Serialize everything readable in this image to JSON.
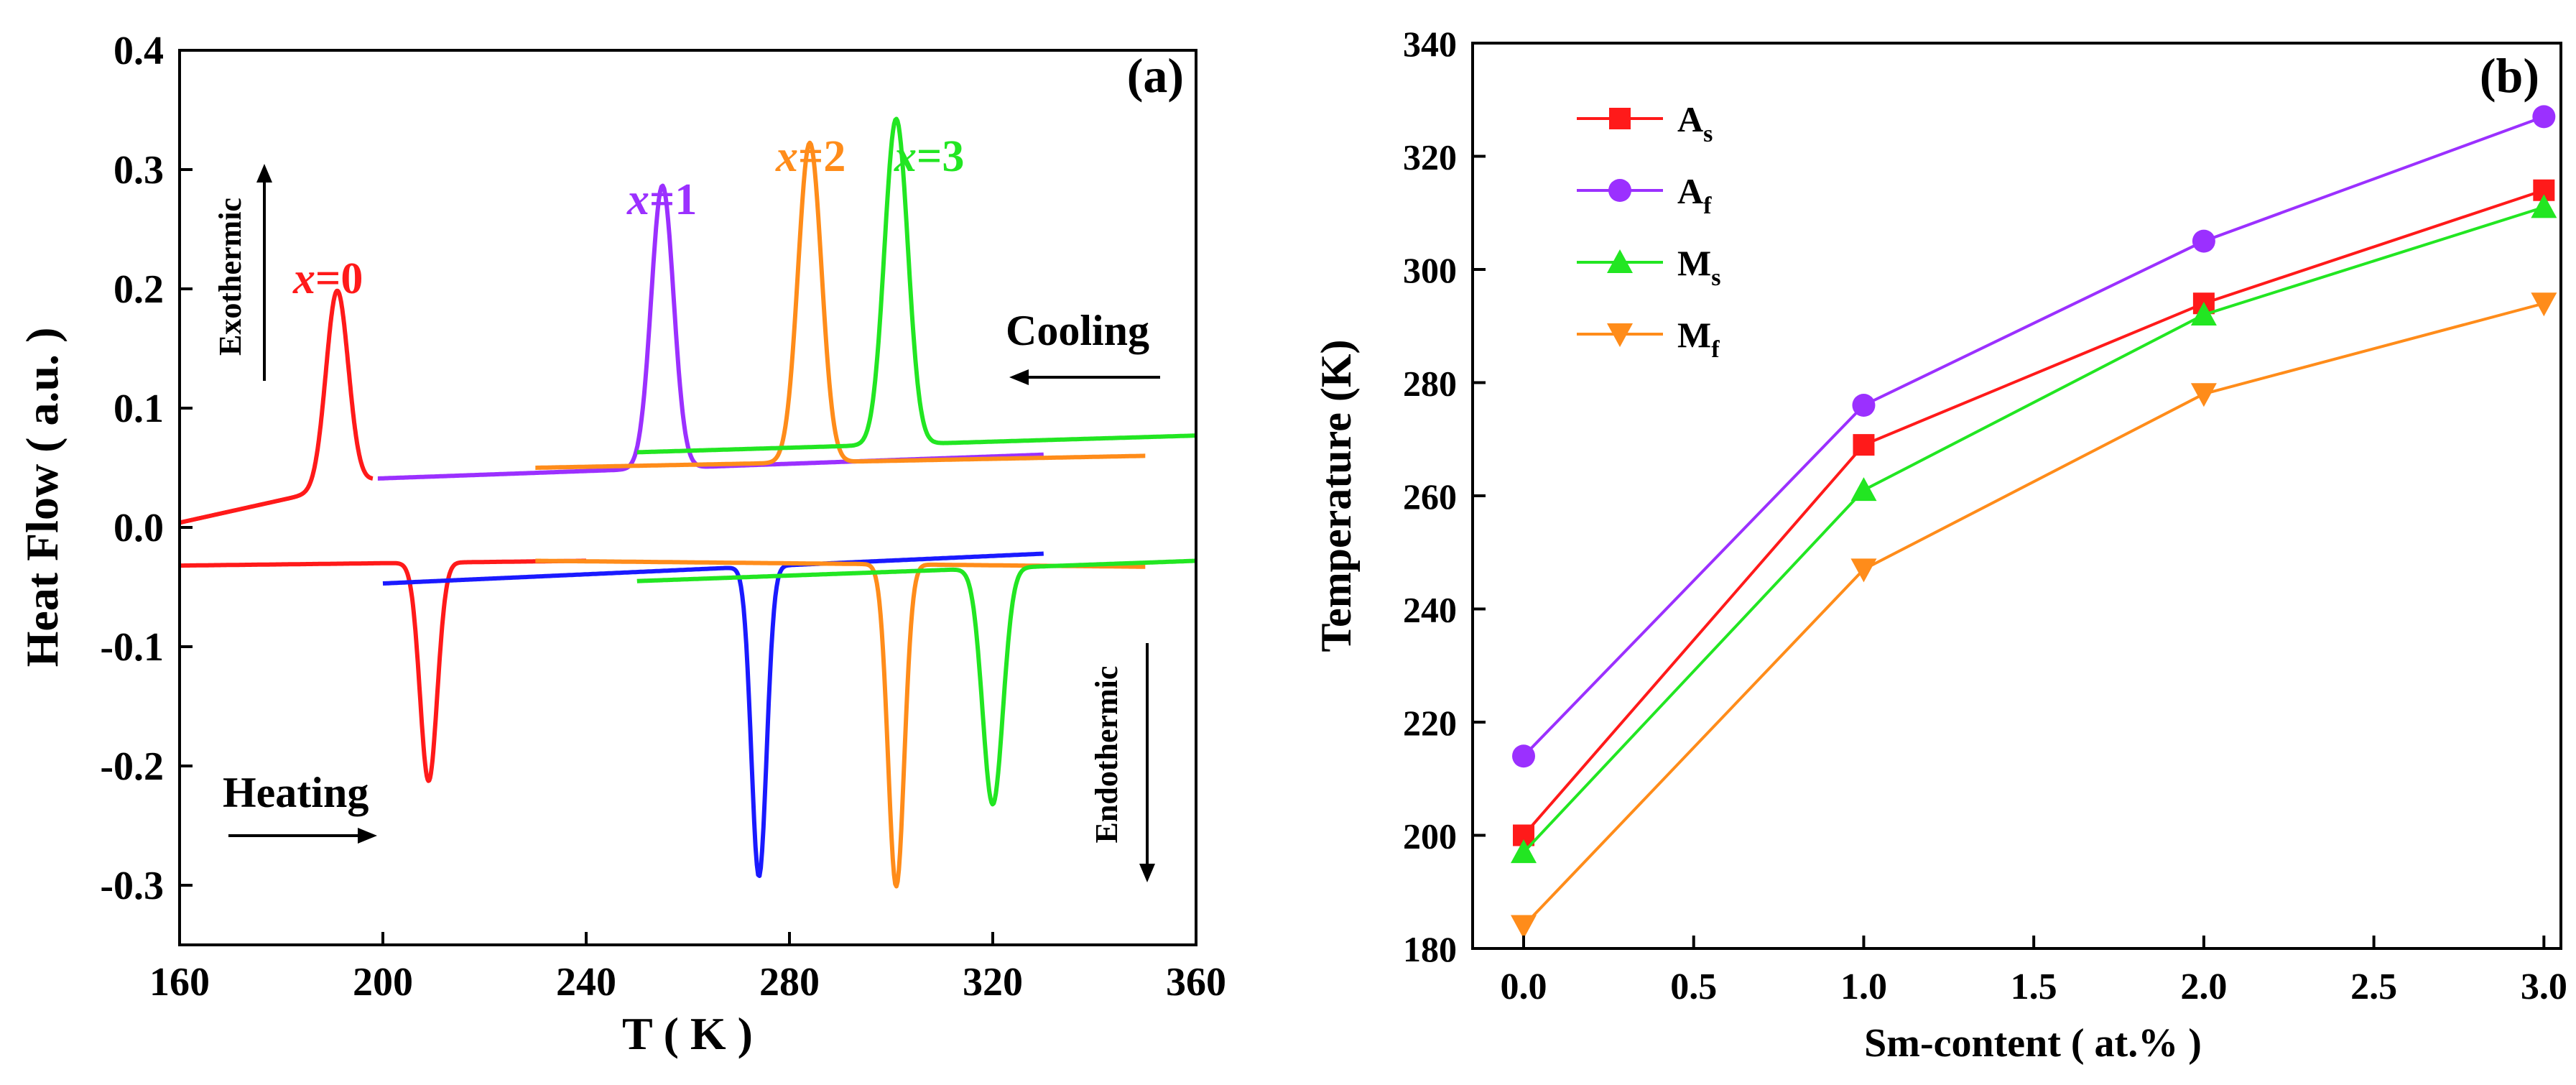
{
  "chart_data": [
    {
      "type": "line",
      "panel_label": "(a)",
      "xlabel": "T ( K )",
      "ylabel": "Heat Flow ( a.u. )",
      "xlim": [
        160,
        360
      ],
      "ylim": [
        -0.35,
        0.4
      ],
      "xticks": [
        "160",
        "200",
        "240",
        "280",
        "320",
        "360"
      ],
      "yticks": [
        "-0.3",
        "-0.2",
        "-0.1",
        "0.0",
        "0.1",
        "0.2",
        "0.3",
        "0.4"
      ],
      "annotations": {
        "exothermic": "Exothermic",
        "endothermic": "Endothermic",
        "cooling": "Cooling",
        "heating": "Heating"
      },
      "series": [
        {
          "name": "x=0 cooling",
          "label_prefix": "x",
          "label_suffix": "=0",
          "color": "#ff1a1a",
          "baseline": {
            "start_x": 160,
            "start_y": 0.004,
            "end_x": 198,
            "end_y": 0.04
          },
          "peak": {
            "x": 191,
            "height": 0.165,
            "width": 2.2
          }
        },
        {
          "name": "x=1 cooling",
          "label_prefix": "x",
          "label_suffix": "=1",
          "color": "#9b30ff",
          "baseline": {
            "start_x": 199,
            "start_y": 0.041,
            "end_x": 330,
            "end_y": 0.061
          },
          "peak": {
            "x": 255,
            "height": 0.237,
            "width": 2.2
          }
        },
        {
          "name": "x=2 cooling",
          "label_prefix": "x",
          "label_suffix": "=2",
          "color": "#ff8c1a",
          "baseline": {
            "start_x": 230,
            "start_y": 0.05,
            "end_x": 350,
            "end_y": 0.06
          },
          "peak": {
            "x": 284,
            "height": 0.268,
            "width": 2.3
          }
        },
        {
          "name": "x=3 cooling",
          "label_prefix": "x",
          "label_suffix": "=3",
          "color": "#22e622",
          "baseline": {
            "start_x": 250,
            "start_y": 0.063,
            "end_x": 360,
            "end_y": 0.077
          },
          "peak": {
            "x": 301,
            "height": 0.273,
            "width": 2.3
          }
        },
        {
          "name": "x=0 heating",
          "color": "#ff1a1a",
          "baseline": {
            "start_x": 160,
            "start_y": -0.032,
            "end_x": 240,
            "end_y": -0.028
          },
          "peak": {
            "x": 209,
            "height": -0.183,
            "width": 1.7
          }
        },
        {
          "name": "x=1 heating",
          "color": "#1a1aff",
          "baseline": {
            "start_x": 200,
            "start_y": -0.047,
            "end_x": 330,
            "end_y": -0.022
          },
          "peak": {
            "x": 274,
            "height": -0.26,
            "width": 1.5
          }
        },
        {
          "name": "x=2 heating",
          "color": "#ff8c1a",
          "baseline": {
            "start_x": 230,
            "start_y": -0.028,
            "end_x": 350,
            "end_y": -0.033
          },
          "peak": {
            "x": 301,
            "height": -0.27,
            "width": 1.6
          }
        },
        {
          "name": "x=3 heating",
          "color": "#22e622",
          "baseline": {
            "start_x": 250,
            "start_y": -0.045,
            "end_x": 360,
            "end_y": -0.028
          },
          "peak": {
            "x": 320,
            "height": -0.198,
            "width": 2.0
          }
        }
      ]
    },
    {
      "type": "line",
      "panel_label": "(b)",
      "xlabel": "Sm-content ( at.% )",
      "ylabel": "Temperature (K)",
      "xlim": [
        -0.15,
        3.05
      ],
      "ylim": [
        180,
        340
      ],
      "xticks": [
        "0.0",
        "0.5",
        "1.0",
        "1.5",
        "2.0",
        "2.5",
        "3.0"
      ],
      "yticks": [
        "180",
        "200",
        "220",
        "240",
        "260",
        "280",
        "300",
        "320",
        "340"
      ],
      "x": [
        0,
        1,
        2,
        3
      ],
      "series": [
        {
          "name": "As",
          "base": "A",
          "sub": "s",
          "color": "#ff1a1a",
          "marker": "square",
          "values": [
            200,
            269,
            294,
            314
          ]
        },
        {
          "name": "Af",
          "base": "A",
          "sub": "f",
          "color": "#9b30ff",
          "marker": "circle",
          "values": [
            214,
            276,
            305,
            327
          ]
        },
        {
          "name": "Ms",
          "base": "M",
          "sub": "s",
          "color": "#22e622",
          "marker": "triangle-up",
          "values": [
            197,
            261,
            292,
            311
          ]
        },
        {
          "name": "Mf",
          "base": "M",
          "sub": "f",
          "color": "#ff8c1a",
          "marker": "triangle-down",
          "values": [
            184,
            247,
            278,
            294
          ]
        }
      ]
    }
  ]
}
